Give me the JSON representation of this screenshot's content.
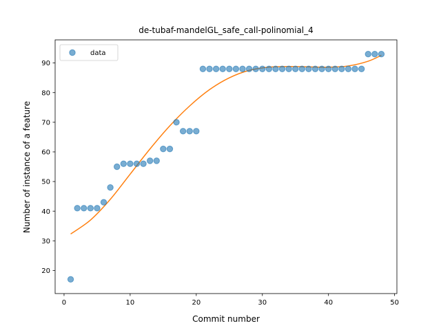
{
  "chart_data": {
    "type": "scatter",
    "title": "de-tubaf-mandelGL_safe_call-polinomial_4",
    "xlabel": "Commit number",
    "ylabel": "Number of instance of a feature",
    "xlim": [
      -1.35,
      50.35
    ],
    "ylim": [
      12.2,
      97.8
    ],
    "xticks": [
      0,
      10,
      20,
      30,
      40,
      50
    ],
    "yticks": [
      20,
      30,
      40,
      50,
      60,
      70,
      80,
      90
    ],
    "grid": false,
    "legend": {
      "position": "top-left",
      "entries": [
        "data"
      ]
    },
    "series": [
      {
        "name": "data",
        "kind": "scatter",
        "color": "#1f77b4",
        "x": [
          1,
          2,
          3,
          4,
          5,
          6,
          7,
          8,
          9,
          10,
          11,
          12,
          13,
          14,
          15,
          16,
          17,
          18,
          19,
          20,
          21,
          22,
          23,
          24,
          25,
          26,
          27,
          28,
          29,
          30,
          31,
          32,
          33,
          34,
          35,
          36,
          37,
          38,
          39,
          40,
          41,
          42,
          43,
          44,
          45,
          46,
          47,
          48
        ],
        "y": [
          17,
          41,
          41,
          41,
          41,
          43,
          48,
          55,
          56,
          56,
          56,
          56,
          57,
          57,
          61,
          61,
          70,
          67,
          67,
          67,
          88,
          88,
          88,
          88,
          88,
          88,
          88,
          88,
          88,
          88,
          88,
          88,
          88,
          88,
          88,
          88,
          88,
          88,
          88,
          88,
          88,
          88,
          88,
          88,
          88,
          93,
          93,
          93
        ]
      },
      {
        "kind": "line",
        "color": "#ff7f0e",
        "x": [
          1,
          4,
          7,
          10,
          13,
          16,
          19,
          22,
          25,
          28,
          31,
          34,
          37,
          40,
          43,
          46,
          48
        ],
        "y": [
          32.3,
          37.0,
          44.0,
          52.5,
          61.0,
          68.8,
          75.5,
          81.0,
          85.0,
          87.5,
          88.6,
          88.8,
          88.7,
          88.6,
          89.0,
          90.6,
          92.6
        ]
      }
    ]
  }
}
